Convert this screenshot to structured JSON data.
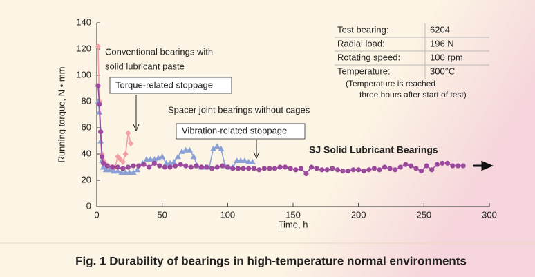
{
  "chart_data": {
    "type": "line",
    "caption": "Fig. 1  Durability of bearings in high-temperature normal environments",
    "xlabel": "Time, h",
    "ylabel": "Running torque, N • mm",
    "xlim": [
      0,
      300
    ],
    "xticks": [
      0,
      50,
      100,
      150,
      200,
      250,
      300
    ],
    "ylim": [
      0,
      140
    ],
    "yticks": [
      0,
      20,
      40,
      60,
      80,
      100,
      120,
      140
    ],
    "series": [
      {
        "color": "#f4a0a8",
        "marker": "diamond",
        "x": [
          1,
          2,
          3,
          4,
          5,
          6,
          8,
          10,
          12,
          14,
          16,
          18,
          20,
          22,
          24,
          26
        ],
        "values": [
          122,
          80,
          57,
          40,
          35,
          33,
          31,
          30,
          30,
          30,
          38,
          36,
          34,
          40,
          56,
          48
        ]
      },
      {
        "color": "#8a9fd6",
        "marker": "triangle",
        "x": [
          1,
          2,
          3,
          4,
          5,
          7,
          10,
          13,
          16,
          19,
          22,
          25,
          28,
          31,
          35,
          38,
          41,
          44,
          47,
          50,
          53,
          56,
          59,
          62,
          65,
          68,
          71,
          74,
          77,
          80,
          83,
          86,
          89,
          92,
          95,
          98,
          101,
          104,
          107,
          110,
          113,
          116,
          119
        ],
        "values": [
          80,
          72,
          50,
          35,
          30,
          28,
          28,
          27,
          27,
          26,
          26,
          26,
          26,
          28,
          33,
          36,
          36,
          36,
          37,
          38,
          33,
          33,
          34,
          38,
          42,
          43,
          43,
          38,
          31,
          30,
          30,
          30,
          44,
          46,
          44,
          31,
          30,
          30,
          35,
          35,
          35,
          34,
          34
        ]
      },
      {
        "color": "#9b4a9e",
        "marker": "circle",
        "x": [
          1,
          2,
          3,
          4,
          5,
          8,
          12,
          16,
          20,
          24,
          28,
          32,
          36,
          40,
          44,
          48,
          52,
          56,
          60,
          64,
          68,
          72,
          76,
          80,
          84,
          88,
          92,
          96,
          100,
          104,
          108,
          112,
          116,
          120,
          124,
          128,
          132,
          136,
          140,
          144,
          148,
          152,
          156,
          160,
          164,
          168,
          172,
          176,
          180,
          184,
          188,
          192,
          196,
          200,
          204,
          208,
          212,
          216,
          220,
          224,
          228,
          232,
          236,
          240,
          244,
          248,
          252,
          256,
          260,
          264,
          268,
          272,
          276,
          280
        ],
        "values": [
          92,
          78,
          57,
          38,
          33,
          31,
          30,
          30,
          29,
          30,
          31,
          31,
          32,
          30,
          33,
          31,
          30,
          30,
          31,
          32,
          31,
          30,
          31,
          30,
          30,
          29,
          30,
          31,
          30,
          29,
          29,
          29,
          29,
          29,
          28,
          29,
          29,
          29,
          30,
          30,
          29,
          28,
          29,
          25,
          30,
          29,
          28,
          28,
          29,
          28,
          27,
          27,
          28,
          28,
          27,
          28,
          29,
          28,
          30,
          29,
          28,
          30,
          32,
          31,
          29,
          27,
          31,
          28,
          32,
          33,
          33,
          31,
          31,
          31
        ]
      }
    ],
    "annotations": {
      "conventional": [
        "Conventional bearings with",
        "solid lubricant paste"
      ],
      "torque_stop": "Torque-related stoppage",
      "spacer": "Spacer joint bearings without cages",
      "vibration_stop": "Vibration-related stoppage",
      "sj": "SJ Solid Lubricant Bearings"
    },
    "conditions": {
      "rows": [
        [
          "Test bearing:",
          "6204"
        ],
        [
          "Radial load:",
          "196 N"
        ],
        [
          "Rotating speed:",
          "100 rpm"
        ],
        [
          "Temperature:",
          "300°C"
        ]
      ],
      "note": [
        "(Temperature is reached",
        "three hours after start of test)"
      ]
    }
  }
}
